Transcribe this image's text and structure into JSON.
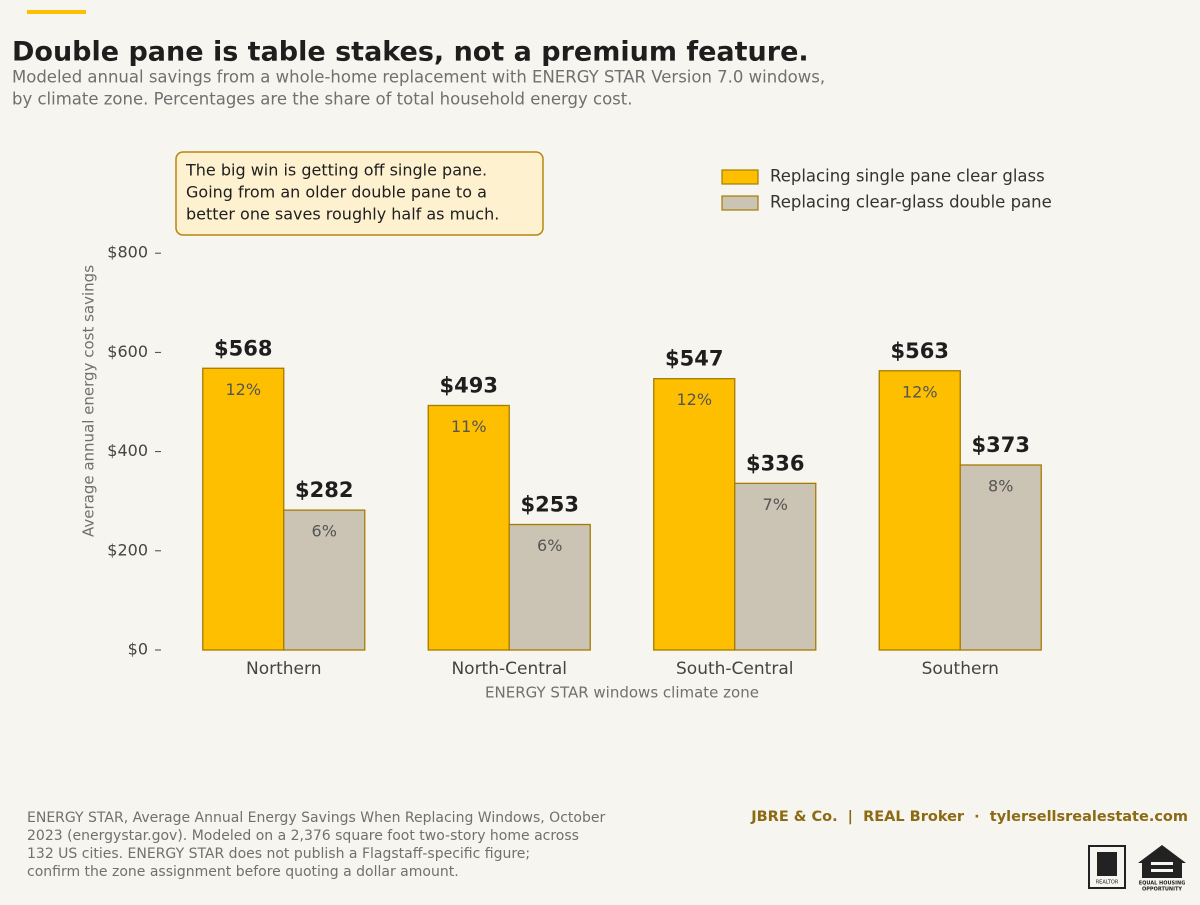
{
  "chart_data": {
    "type": "bar",
    "title": "Double pane is table stakes, not a premium feature.",
    "subtitle": [
      "Modeled annual savings from a whole-home replacement with ENERGY STAR Version 7.0 windows,",
      "by climate zone. Percentages are the share of total household energy cost."
    ],
    "annotation": [
      "The big win is getting off single pane.",
      "Going from an older double pane to a",
      "better one saves roughly half as much."
    ],
    "categories": [
      "Northern",
      "North-Central",
      "South-Central",
      "Southern"
    ],
    "series": [
      {
        "name": "Replacing single pane clear glass",
        "color": "#fdbf00",
        "values": [
          568,
          493,
          547,
          563
        ],
        "value_labels": [
          "$568",
          "$493",
          "$547",
          "$563"
        ],
        "shares": [
          12,
          11,
          12,
          12
        ],
        "share_labels": [
          "12%",
          "11%",
          "12%",
          "12%"
        ]
      },
      {
        "name": "Replacing clear-glass double pane",
        "color": "#cbc3b3",
        "values": [
          282,
          253,
          336,
          373
        ],
        "value_labels": [
          "$282",
          "$253",
          "$336",
          "$373"
        ],
        "shares": [
          6,
          6,
          7,
          8
        ],
        "share_labels": [
          "6%",
          "6%",
          "7%",
          "8%"
        ]
      }
    ],
    "ylabel": "Average annual energy cost savings",
    "xlabel": "ENERGY STAR windows climate zone",
    "ylim": [
      0,
      1000
    ],
    "yticks": [
      {
        "value": 0,
        "label": "$0"
      },
      {
        "value": 200,
        "label": "$200"
      },
      {
        "value": 400,
        "label": "$400"
      },
      {
        "value": 600,
        "label": "$600"
      },
      {
        "value": 800,
        "label": "$800"
      }
    ],
    "legend": "upper right",
    "grid": false,
    "source": [
      "ENERGY STAR, Average Annual Energy Savings When Replacing Windows, October",
      "2023 (energystar.gov). Modeled on a 2,376 square foot two-story home across",
      "132 US cities. ENERGY STAR does not publish a Flagstaff-specific figure;",
      "confirm the zone assignment before quoting a dollar amount."
    ],
    "brand": "JBRE & Co.  |  REAL Broker  ·  tylersellsrealestate.com",
    "logos": [
      "REALTOR",
      "EQUAL HOUSING",
      "OPPORTUNITY"
    ]
  }
}
